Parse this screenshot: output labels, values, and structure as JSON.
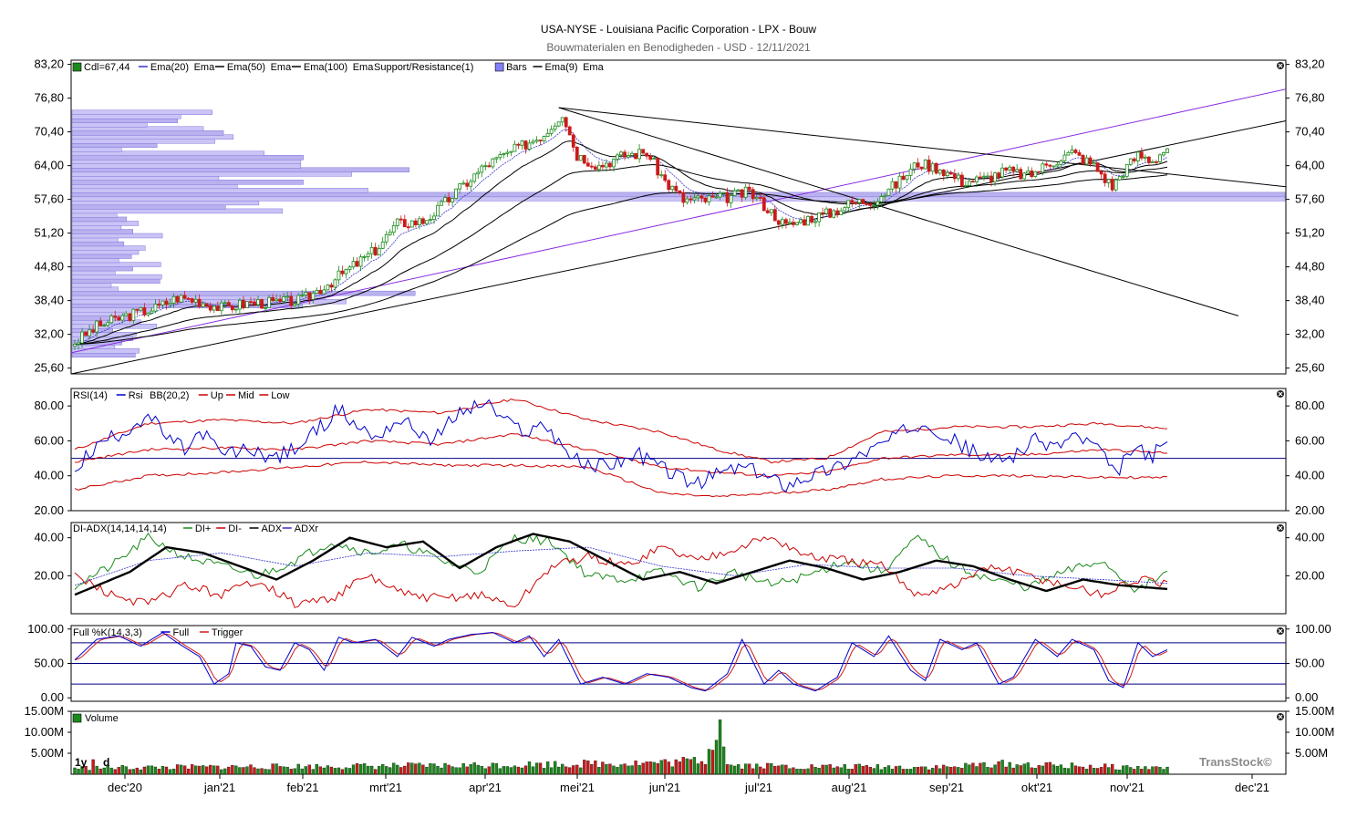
{
  "header": {
    "title": "USA-NYSE - Louisiana Pacific Corporation - LPX - Bouw",
    "subtitle": "Bouwmaterialen en Benodigheden - USD - 12/11/2021"
  },
  "watermark": "TransStock©",
  "period_label": "1y",
  "interval_label": "d",
  "colors": {
    "up": "#1a8a1a",
    "down": "#cc1a1a",
    "ema": "#000000",
    "support": "#8a2be2",
    "rsi": "#0000cc",
    "bb": "#cc0000",
    "diplus": "#1a8a1a",
    "diminus": "#cc0000",
    "adx": "#000000",
    "adxr": "#3333cc",
    "volbar": "#8080ff"
  },
  "chart_data": [
    {
      "type": "candlestick",
      "legend": [
        "Cdl=67,44",
        "Ema(20)",
        "Ema",
        "Ema(50)",
        "Ema",
        "Ema(100)",
        "Ema",
        "Support/Resistance(1)",
        "Bars",
        "Ema(9)",
        "Ema"
      ],
      "y_ticks": [
        "83,20",
        "76,80",
        "70,40",
        "64,00",
        "57,60",
        "51,20",
        "44,80",
        "38,40",
        "32,00",
        "25,60"
      ],
      "ylim": [
        24.5,
        84.0
      ],
      "x_labels": [
        "dec'20",
        "jan'21",
        "feb'21",
        "mrt'21",
        "apr'21",
        "mei'21",
        "jun'21",
        "jul'21",
        "aug'21",
        "sep'21",
        "okt'21",
        "nov'21",
        "dec'21"
      ],
      "close_keypoints": [
        [
          0,
          30.5
        ],
        [
          6,
          33.5
        ],
        [
          14,
          35.5
        ],
        [
          22,
          37.0
        ],
        [
          28,
          39.0
        ],
        [
          33,
          38.5
        ],
        [
          40,
          37.0
        ],
        [
          48,
          38.0
        ],
        [
          55,
          38.0
        ],
        [
          62,
          38.5
        ],
        [
          70,
          42.0
        ],
        [
          76,
          45.0
        ],
        [
          82,
          48.0
        ],
        [
          88,
          53.0
        ],
        [
          95,
          53.5
        ],
        [
          98,
          55.0
        ],
        [
          104,
          59.0
        ],
        [
          112,
          64.0
        ],
        [
          120,
          67.0
        ],
        [
          128,
          70.0
        ],
        [
          133,
          74.0
        ],
        [
          137,
          66.0
        ],
        [
          143,
          64.0
        ],
        [
          150,
          66.0
        ],
        [
          156,
          66.5
        ],
        [
          161,
          61.0
        ],
        [
          166,
          57.5
        ],
        [
          172,
          57.5
        ],
        [
          178,
          58.0
        ],
        [
          184,
          59.0
        ],
        [
          188,
          56.5
        ],
        [
          194,
          52.5
        ],
        [
          200,
          54.0
        ],
        [
          206,
          55.0
        ],
        [
          212,
          57.0
        ],
        [
          218,
          57.5
        ],
        [
          224,
          60.5
        ],
        [
          230,
          64.5
        ],
        [
          236,
          63.5
        ],
        [
          242,
          61.0
        ],
        [
          248,
          61.5
        ],
        [
          254,
          63.0
        ],
        [
          260,
          62.0
        ],
        [
          266,
          64.5
        ],
        [
          272,
          66.5
        ],
        [
          278,
          64.0
        ],
        [
          283,
          60.0
        ],
        [
          286,
          63.0
        ],
        [
          290,
          66.0
        ],
        [
          294,
          65.0
        ],
        [
          298,
          67.4
        ]
      ],
      "volume_keypoints": [
        [
          0,
          1.5
        ],
        [
          50,
          1.8
        ],
        [
          100,
          2.0
        ],
        [
          140,
          2.5
        ],
        [
          163,
          2.8
        ],
        [
          172,
          3.5
        ],
        [
          176,
          13.0
        ],
        [
          178,
          2.2
        ],
        [
          200,
          1.8
        ],
        [
          240,
          1.7
        ],
        [
          250,
          2.5
        ],
        [
          270,
          2.0
        ],
        [
          290,
          1.6
        ],
        [
          298,
          1.5
        ]
      ]
    },
    {
      "type": "line",
      "legend": [
        "RSI(14)",
        "Rsi",
        "BB(20,2)",
        "Up",
        "Mid",
        "Low"
      ],
      "y_ticks": [
        "80.00",
        "60.00",
        "40.00",
        "20.00"
      ],
      "ylim": [
        20,
        90
      ],
      "reference_line": 50,
      "rsi_keypoints": [
        [
          0,
          45
        ],
        [
          8,
          60
        ],
        [
          14,
          66
        ],
        [
          20,
          75
        ],
        [
          26,
          60
        ],
        [
          30,
          55
        ],
        [
          35,
          65
        ],
        [
          40,
          52
        ],
        [
          48,
          55
        ],
        [
          55,
          50
        ],
        [
          62,
          58
        ],
        [
          68,
          70
        ],
        [
          72,
          78
        ],
        [
          76,
          70
        ],
        [
          82,
          62
        ],
        [
          88,
          72
        ],
        [
          92,
          68
        ],
        [
          98,
          60
        ],
        [
          104,
          75
        ],
        [
          112,
          82
        ],
        [
          118,
          70
        ],
        [
          124,
          65
        ],
        [
          128,
          70
        ],
        [
          132,
          60
        ],
        [
          136,
          50
        ],
        [
          140,
          45
        ],
        [
          148,
          48
        ],
        [
          154,
          52
        ],
        [
          160,
          45
        ],
        [
          166,
          38
        ],
        [
          170,
          35
        ],
        [
          176,
          42
        ],
        [
          182,
          45
        ],
        [
          188,
          40
        ],
        [
          194,
          35
        ],
        [
          200,
          40
        ],
        [
          208,
          45
        ],
        [
          214,
          52
        ],
        [
          220,
          58
        ],
        [
          226,
          65
        ],
        [
          232,
          72
        ],
        [
          238,
          62
        ],
        [
          244,
          55
        ],
        [
          250,
          48
        ],
        [
          256,
          52
        ],
        [
          262,
          60
        ],
        [
          268,
          57
        ],
        [
          272,
          63
        ],
        [
          278,
          58
        ],
        [
          284,
          40
        ],
        [
          288,
          55
        ],
        [
          294,
          52
        ],
        [
          298,
          58
        ]
      ],
      "bb_up": [
        [
          0,
          55
        ],
        [
          20,
          70
        ],
        [
          40,
          72
        ],
        [
          60,
          70
        ],
        [
          80,
          78
        ],
        [
          100,
          76
        ],
        [
          120,
          84
        ],
        [
          140,
          72
        ],
        [
          160,
          65
        ],
        [
          175,
          55
        ],
        [
          190,
          48
        ],
        [
          205,
          50
        ],
        [
          220,
          65
        ],
        [
          240,
          68
        ],
        [
          260,
          68
        ],
        [
          280,
          70
        ],
        [
          298,
          67
        ]
      ],
      "bb_mid": [
        [
          0,
          48
        ],
        [
          20,
          55
        ],
        [
          40,
          56
        ],
        [
          60,
          55
        ],
        [
          80,
          60
        ],
        [
          100,
          58
        ],
        [
          120,
          64
        ],
        [
          140,
          55
        ],
        [
          160,
          45
        ],
        [
          175,
          42
        ],
        [
          190,
          40
        ],
        [
          205,
          42
        ],
        [
          220,
          50
        ],
        [
          240,
          52
        ],
        [
          260,
          52
        ],
        [
          280,
          55
        ],
        [
          298,
          53
        ]
      ],
      "bb_low": [
        [
          0,
          32
        ],
        [
          20,
          40
        ],
        [
          40,
          42
        ],
        [
          60,
          45
        ],
        [
          80,
          48
        ],
        [
          100,
          46
        ],
        [
          120,
          46
        ],
        [
          140,
          45
        ],
        [
          160,
          30
        ],
        [
          175,
          28
        ],
        [
          190,
          30
        ],
        [
          205,
          32
        ],
        [
          220,
          38
        ],
        [
          240,
          40
        ],
        [
          260,
          40
        ],
        [
          280,
          39
        ],
        [
          298,
          39
        ]
      ]
    },
    {
      "type": "line",
      "legend": [
        "DI-ADX(14,14,14,14)",
        "DI+",
        "DI-",
        "ADX",
        "ADXr"
      ],
      "y_ticks": [
        "40.00",
        "20.00"
      ],
      "ylim": [
        0,
        48
      ],
      "diplus": [
        [
          0,
          15
        ],
        [
          10,
          25
        ],
        [
          20,
          40
        ],
        [
          30,
          30
        ],
        [
          40,
          25
        ],
        [
          50,
          20
        ],
        [
          60,
          28
        ],
        [
          70,
          38
        ],
        [
          80,
          32
        ],
        [
          90,
          36
        ],
        [
          100,
          28
        ],
        [
          110,
          22
        ],
        [
          120,
          40
        ],
        [
          130,
          38
        ],
        [
          140,
          20
        ],
        [
          150,
          18
        ],
        [
          160,
          22
        ],
        [
          170,
          14
        ],
        [
          180,
          22
        ],
        [
          190,
          15
        ],
        [
          200,
          20
        ],
        [
          210,
          28
        ],
        [
          220,
          22
        ],
        [
          230,
          40
        ],
        [
          240,
          25
        ],
        [
          250,
          18
        ],
        [
          260,
          14
        ],
        [
          270,
          22
        ],
        [
          280,
          28
        ],
        [
          290,
          12
        ],
        [
          298,
          22
        ]
      ],
      "diminus": [
        [
          0,
          20
        ],
        [
          10,
          10
        ],
        [
          20,
          5
        ],
        [
          30,
          15
        ],
        [
          40,
          10
        ],
        [
          50,
          18
        ],
        [
          60,
          5
        ],
        [
          70,
          8
        ],
        [
          80,
          20
        ],
        [
          90,
          10
        ],
        [
          100,
          8
        ],
        [
          110,
          10
        ],
        [
          120,
          4
        ],
        [
          130,
          25
        ],
        [
          140,
          30
        ],
        [
          150,
          25
        ],
        [
          160,
          35
        ],
        [
          170,
          28
        ],
        [
          180,
          35
        ],
        [
          190,
          40
        ],
        [
          200,
          30
        ],
        [
          210,
          28
        ],
        [
          220,
          25
        ],
        [
          230,
          10
        ],
        [
          240,
          15
        ],
        [
          250,
          25
        ],
        [
          260,
          20
        ],
        [
          270,
          15
        ],
        [
          280,
          10
        ],
        [
          290,
          18
        ],
        [
          298,
          15
        ]
      ],
      "adx": [
        [
          0,
          10
        ],
        [
          15,
          22
        ],
        [
          25,
          35
        ],
        [
          35,
          32
        ],
        [
          45,
          25
        ],
        [
          55,
          18
        ],
        [
          65,
          28
        ],
        [
          75,
          40
        ],
        [
          85,
          35
        ],
        [
          95,
          38
        ],
        [
          105,
          24
        ],
        [
          115,
          35
        ],
        [
          125,
          42
        ],
        [
          135,
          38
        ],
        [
          145,
          28
        ],
        [
          155,
          18
        ],
        [
          165,
          22
        ],
        [
          175,
          16
        ],
        [
          185,
          22
        ],
        [
          195,
          28
        ],
        [
          205,
          24
        ],
        [
          215,
          18
        ],
        [
          225,
          22
        ],
        [
          235,
          28
        ],
        [
          245,
          25
        ],
        [
          255,
          18
        ],
        [
          265,
          12
        ],
        [
          275,
          18
        ],
        [
          285,
          15
        ],
        [
          298,
          13
        ]
      ],
      "adxr": [
        [
          0,
          15
        ],
        [
          20,
          28
        ],
        [
          40,
          32
        ],
        [
          60,
          25
        ],
        [
          80,
          32
        ],
        [
          100,
          30
        ],
        [
          120,
          33
        ],
        [
          140,
          35
        ],
        [
          160,
          25
        ],
        [
          180,
          20
        ],
        [
          200,
          26
        ],
        [
          220,
          24
        ],
        [
          240,
          24
        ],
        [
          260,
          20
        ],
        [
          280,
          18
        ],
        [
          298,
          16
        ]
      ]
    },
    {
      "type": "line",
      "legend": [
        "Full %K(14,3,3)",
        "Full",
        "Trigger"
      ],
      "y_ticks": [
        "100.00",
        "50.00",
        "0.00"
      ],
      "ylim": [
        -5,
        105
      ],
      "reference_lines": [
        80,
        50,
        20
      ],
      "full_keypoints": [
        [
          0,
          55
        ],
        [
          6,
          85
        ],
        [
          12,
          90
        ],
        [
          18,
          75
        ],
        [
          24,
          95
        ],
        [
          28,
          80
        ],
        [
          34,
          60
        ],
        [
          38,
          20
        ],
        [
          42,
          35
        ],
        [
          44,
          80
        ],
        [
          48,
          75
        ],
        [
          52,
          45
        ],
        [
          56,
          40
        ],
        [
          60,
          80
        ],
        [
          64,
          70
        ],
        [
          68,
          40
        ],
        [
          72,
          88
        ],
        [
          76,
          80
        ],
        [
          82,
          85
        ],
        [
          88,
          60
        ],
        [
          92,
          88
        ],
        [
          98,
          75
        ],
        [
          102,
          85
        ],
        [
          108,
          92
        ],
        [
          114,
          95
        ],
        [
          120,
          80
        ],
        [
          124,
          90
        ],
        [
          128,
          60
        ],
        [
          132,
          85
        ],
        [
          138,
          20
        ],
        [
          144,
          30
        ],
        [
          150,
          20
        ],
        [
          156,
          35
        ],
        [
          162,
          30
        ],
        [
          168,
          15
        ],
        [
          172,
          10
        ],
        [
          178,
          35
        ],
        [
          182,
          85
        ],
        [
          188,
          20
        ],
        [
          192,
          40
        ],
        [
          196,
          20
        ],
        [
          202,
          10
        ],
        [
          208,
          30
        ],
        [
          212,
          80
        ],
        [
          218,
          60
        ],
        [
          222,
          90
        ],
        [
          228,
          40
        ],
        [
          232,
          25
        ],
        [
          236,
          85
        ],
        [
          242,
          70
        ],
        [
          246,
          80
        ],
        [
          252,
          20
        ],
        [
          256,
          30
        ],
        [
          262,
          85
        ],
        [
          268,
          60
        ],
        [
          272,
          85
        ],
        [
          278,
          70
        ],
        [
          282,
          25
        ],
        [
          286,
          15
        ],
        [
          290,
          80
        ],
        [
          294,
          60
        ],
        [
          298,
          70
        ]
      ]
    },
    {
      "type": "bar",
      "legend": [
        "Volume"
      ],
      "y_ticks": [
        "15.00M",
        "10.00M",
        "5.00M"
      ],
      "ylim": [
        0,
        15
      ]
    }
  ]
}
